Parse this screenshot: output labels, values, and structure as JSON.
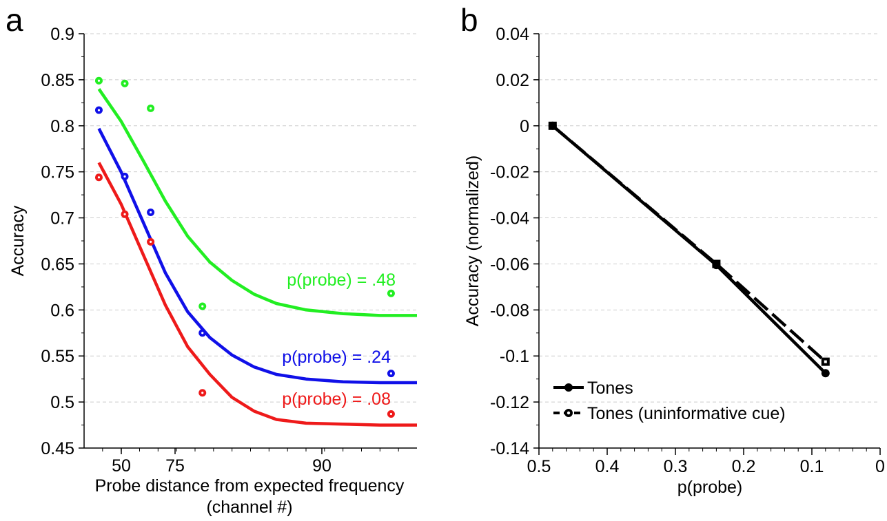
{
  "colors": {
    "axis": "#000000",
    "grid": "#cccccc",
    "green": "#22ee22",
    "blue": "#1010e8",
    "red": "#ee1a1a",
    "black": "#000000"
  },
  "chart_data": [
    {
      "panel_label": "a",
      "type": "scatter",
      "xlabel_line1": "Probe distance from expected frequency",
      "xlabel_line2": "(channel #)",
      "ylabel": "Accuracy",
      "xlim": [
        40,
        130
      ],
      "ylim": [
        0.45,
        0.9
      ],
      "grid": "horizontal",
      "yticks": [
        0.45,
        0.5,
        0.55,
        0.6,
        0.65,
        0.7,
        0.75,
        0.8,
        0.85,
        0.9
      ],
      "ytick_labels": [
        "0.45",
        "0.5",
        "0.55",
        "0.6",
        "0.65",
        "0.7",
        "0.75",
        "0.8",
        "0.85",
        "0.9"
      ],
      "xticks_major": [
        50,
        75,
        90
      ],
      "xtick_labels": [
        "50",
        "75",
        "90"
      ],
      "series": [
        {
          "name": "p(probe) = .48",
          "color": "green",
          "points": {
            "x": [
              44,
              51,
              58,
              72,
              123
            ],
            "y": [
              0.849,
              0.846,
              0.819,
              0.604,
              0.618
            ]
          },
          "fit": {
            "x": [
              44,
              50,
              56,
              62,
              68,
              74,
              80,
              86,
              92,
              100,
              110,
              120,
              130
            ],
            "y": [
              0.84,
              0.805,
              0.762,
              0.718,
              0.68,
              0.652,
              0.632,
              0.617,
              0.607,
              0.6,
              0.596,
              0.594,
              0.594
            ]
          }
        },
        {
          "name": "p(probe) = .24",
          "color": "blue",
          "points": {
            "x": [
              44,
              51,
              58,
              72,
              123
            ],
            "y": [
              0.817,
              0.745,
              0.706,
              0.575,
              0.531
            ]
          },
          "fit": {
            "x": [
              44,
              50,
              56,
              62,
              68,
              74,
              80,
              86,
              92,
              100,
              110,
              120,
              130
            ],
            "y": [
              0.797,
              0.75,
              0.695,
              0.64,
              0.598,
              0.57,
              0.551,
              0.538,
              0.53,
              0.525,
              0.522,
              0.521,
              0.521
            ]
          }
        },
        {
          "name": "p(probe) = .08",
          "color": "red",
          "points": {
            "x": [
              44,
              51,
              58,
              72,
              123
            ],
            "y": [
              0.744,
              0.704,
              0.674,
              0.51,
              0.487
            ]
          },
          "fit": {
            "x": [
              44,
              50,
              56,
              62,
              68,
              74,
              80,
              86,
              92,
              100,
              110,
              120,
              130
            ],
            "y": [
              0.76,
              0.715,
              0.66,
              0.605,
              0.56,
              0.53,
              0.505,
              0.49,
              0.481,
              0.477,
              0.476,
              0.475,
              0.475
            ]
          }
        }
      ]
    },
    {
      "panel_label": "b",
      "type": "line",
      "xlabel": "p(probe)",
      "ylabel": "Accuracy (normalized)",
      "xlim": [
        0.5,
        0
      ],
      "ylim": [
        -0.14,
        0.04
      ],
      "grid": "horizontal",
      "xticks": [
        0.5,
        0.4,
        0.3,
        0.2,
        0.1,
        0
      ],
      "xtick_labels": [
        "0.5",
        "0.4",
        "0.3",
        "0.2",
        "0.1",
        "0"
      ],
      "yticks": [
        -0.14,
        -0.12,
        -0.1,
        -0.08,
        -0.06,
        -0.04,
        -0.02,
        0,
        0.02,
        0.04
      ],
      "ytick_labels": [
        "-0.14",
        "-0.12",
        "-0.1",
        "-0.08",
        "-0.06",
        "-0.04",
        "-0.02",
        "0",
        "0.02",
        "0.04"
      ],
      "legend": "bottom-left",
      "series": [
        {
          "name": "Tones",
          "style": "solid",
          "color": "black",
          "x": [
            0.48,
            0.24,
            0.08
          ],
          "y": [
            0.0,
            -0.0605,
            -0.1075
          ]
        },
        {
          "name": "Tones (uninformative cue)",
          "style": "dashed",
          "color": "black",
          "x": [
            0.48,
            0.24,
            0.08
          ],
          "y": [
            0.0,
            -0.06,
            -0.1025
          ]
        }
      ]
    }
  ]
}
